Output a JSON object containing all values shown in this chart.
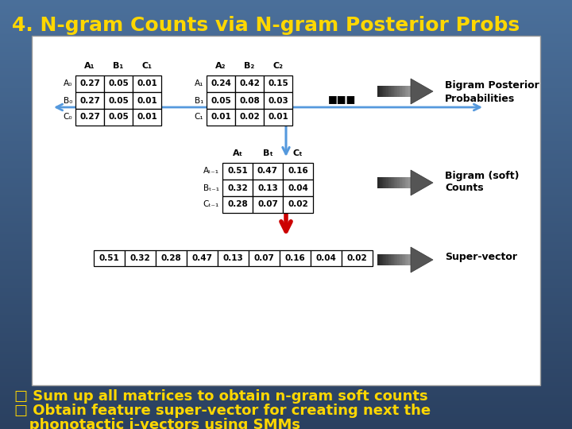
{
  "title": "4. N-gram Counts via N-gram Posterior Probs",
  "title_color": "#FFD700",
  "title_fontsize": 18,
  "matrix1_header_cols": [
    "A₁",
    "B₁",
    "C₁"
  ],
  "matrix1_header_rows": [
    "A₀",
    "B₀",
    "C₀"
  ],
  "matrix1_data": [
    [
      0.27,
      0.05,
      0.01
    ],
    [
      0.27,
      0.05,
      0.01
    ],
    [
      0.27,
      0.05,
      0.01
    ]
  ],
  "matrix2_header_cols": [
    "A₂",
    "B₂",
    "C₂"
  ],
  "matrix2_header_rows": [
    "A₁",
    "B₁",
    "C₁"
  ],
  "matrix2_data": [
    [
      0.24,
      0.42,
      0.15
    ],
    [
      0.05,
      0.08,
      0.03
    ],
    [
      0.01,
      0.02,
      0.01
    ]
  ],
  "matrix3_header_cols": [
    "Aₜ",
    "Bₜ",
    "Cₜ"
  ],
  "matrix3_header_rows": [
    "Aₜ₋₁",
    "Bₜ₋₁",
    "Cₜ₋₁"
  ],
  "matrix3_data": [
    [
      0.51,
      0.47,
      0.16
    ],
    [
      0.32,
      0.13,
      0.04
    ],
    [
      0.28,
      0.07,
      0.02
    ]
  ],
  "supervector": [
    0.51,
    0.32,
    0.28,
    0.47,
    0.13,
    0.07,
    0.16,
    0.04,
    0.02
  ],
  "label_bigram": [
    "Bigram Posterior",
    "Probabilities"
  ],
  "label_soft": [
    "Bigram (soft)",
    "Counts"
  ],
  "label_super": "Super-vector",
  "bullet1": "□ Sum up all matrices to obtain n-gram soft counts",
  "bullet2": "□ Obtain feature super-vector for creating next the",
  "bullet3": "   phonotactic i-vectors using SMMs",
  "bullet_color": "#FFD700",
  "bullet_fontsize": 13,
  "bg_color_top": "#4a6f9a",
  "bg_color_bottom": "#2a4060",
  "orange_arc_color": "#E86000",
  "blue_arc_color": "#3399FF"
}
